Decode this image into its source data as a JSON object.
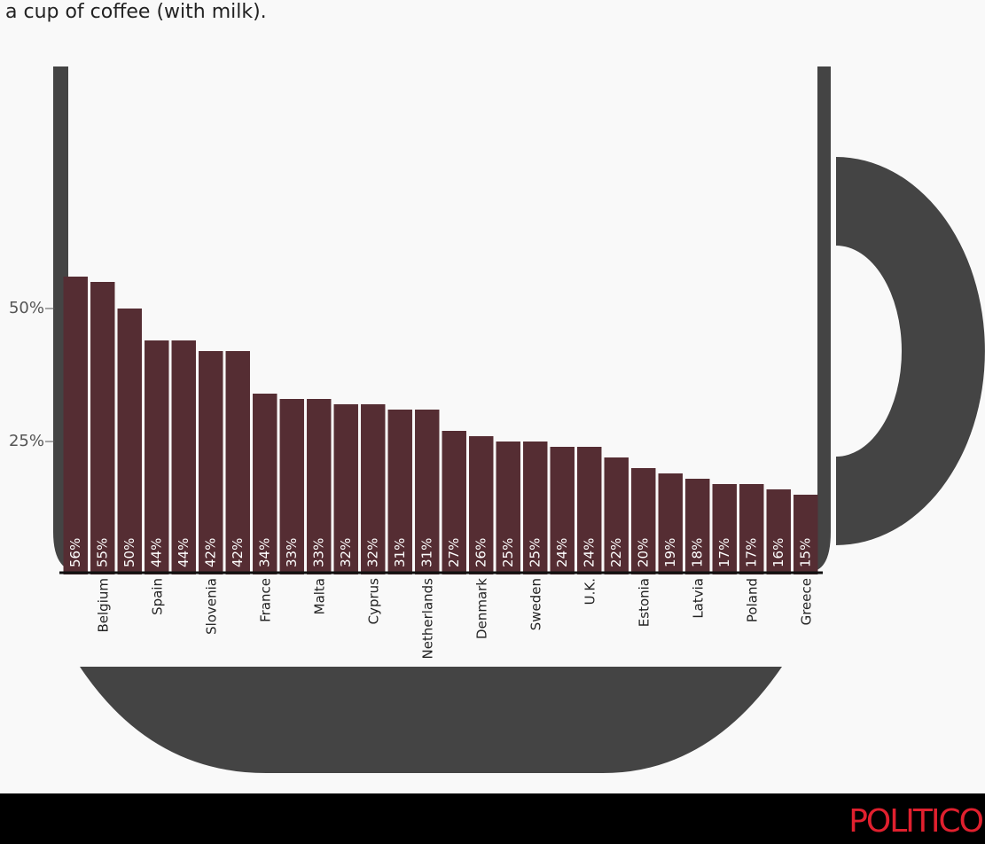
{
  "chart_data": {
    "type": "bar",
    "title": "a cup of coffee (with milk).",
    "categories": [
      null,
      "Belgium",
      null,
      "Spain",
      null,
      "Slovenia",
      null,
      "France",
      null,
      "Malta",
      null,
      "Cyprus",
      null,
      "Netherlands",
      null,
      "Denmark",
      null,
      "Sweden",
      null,
      "U.K.",
      null,
      "Estonia",
      null,
      "Latvia",
      null,
      "Poland",
      null,
      "Greece"
    ],
    "values": [
      56,
      55,
      50,
      44,
      44,
      42,
      42,
      34,
      33,
      33,
      32,
      32,
      31,
      31,
      27,
      26,
      25,
      25,
      24,
      24,
      22,
      20,
      19,
      18,
      17,
      17,
      16,
      15
    ],
    "value_labels": [
      "56%",
      "55%",
      "50%",
      "44%",
      "44%",
      "42%",
      "42%",
      "34%",
      "33%",
      "33%",
      "32%",
      "32%",
      "31%",
      "31%",
      "27%",
      "26%",
      "25%",
      "25%",
      "24%",
      "24%",
      "22%",
      "20%",
      "19%",
      "18%",
      "17%",
      "17%",
      "16%",
      "15%"
    ],
    "color": "#552d33",
    "ylim": [
      0,
      95
    ],
    "yticks": [
      {
        "value": 25,
        "label": "25%"
      },
      {
        "value": 50,
        "label": "50%"
      }
    ],
    "brand": "POLITICO"
  }
}
